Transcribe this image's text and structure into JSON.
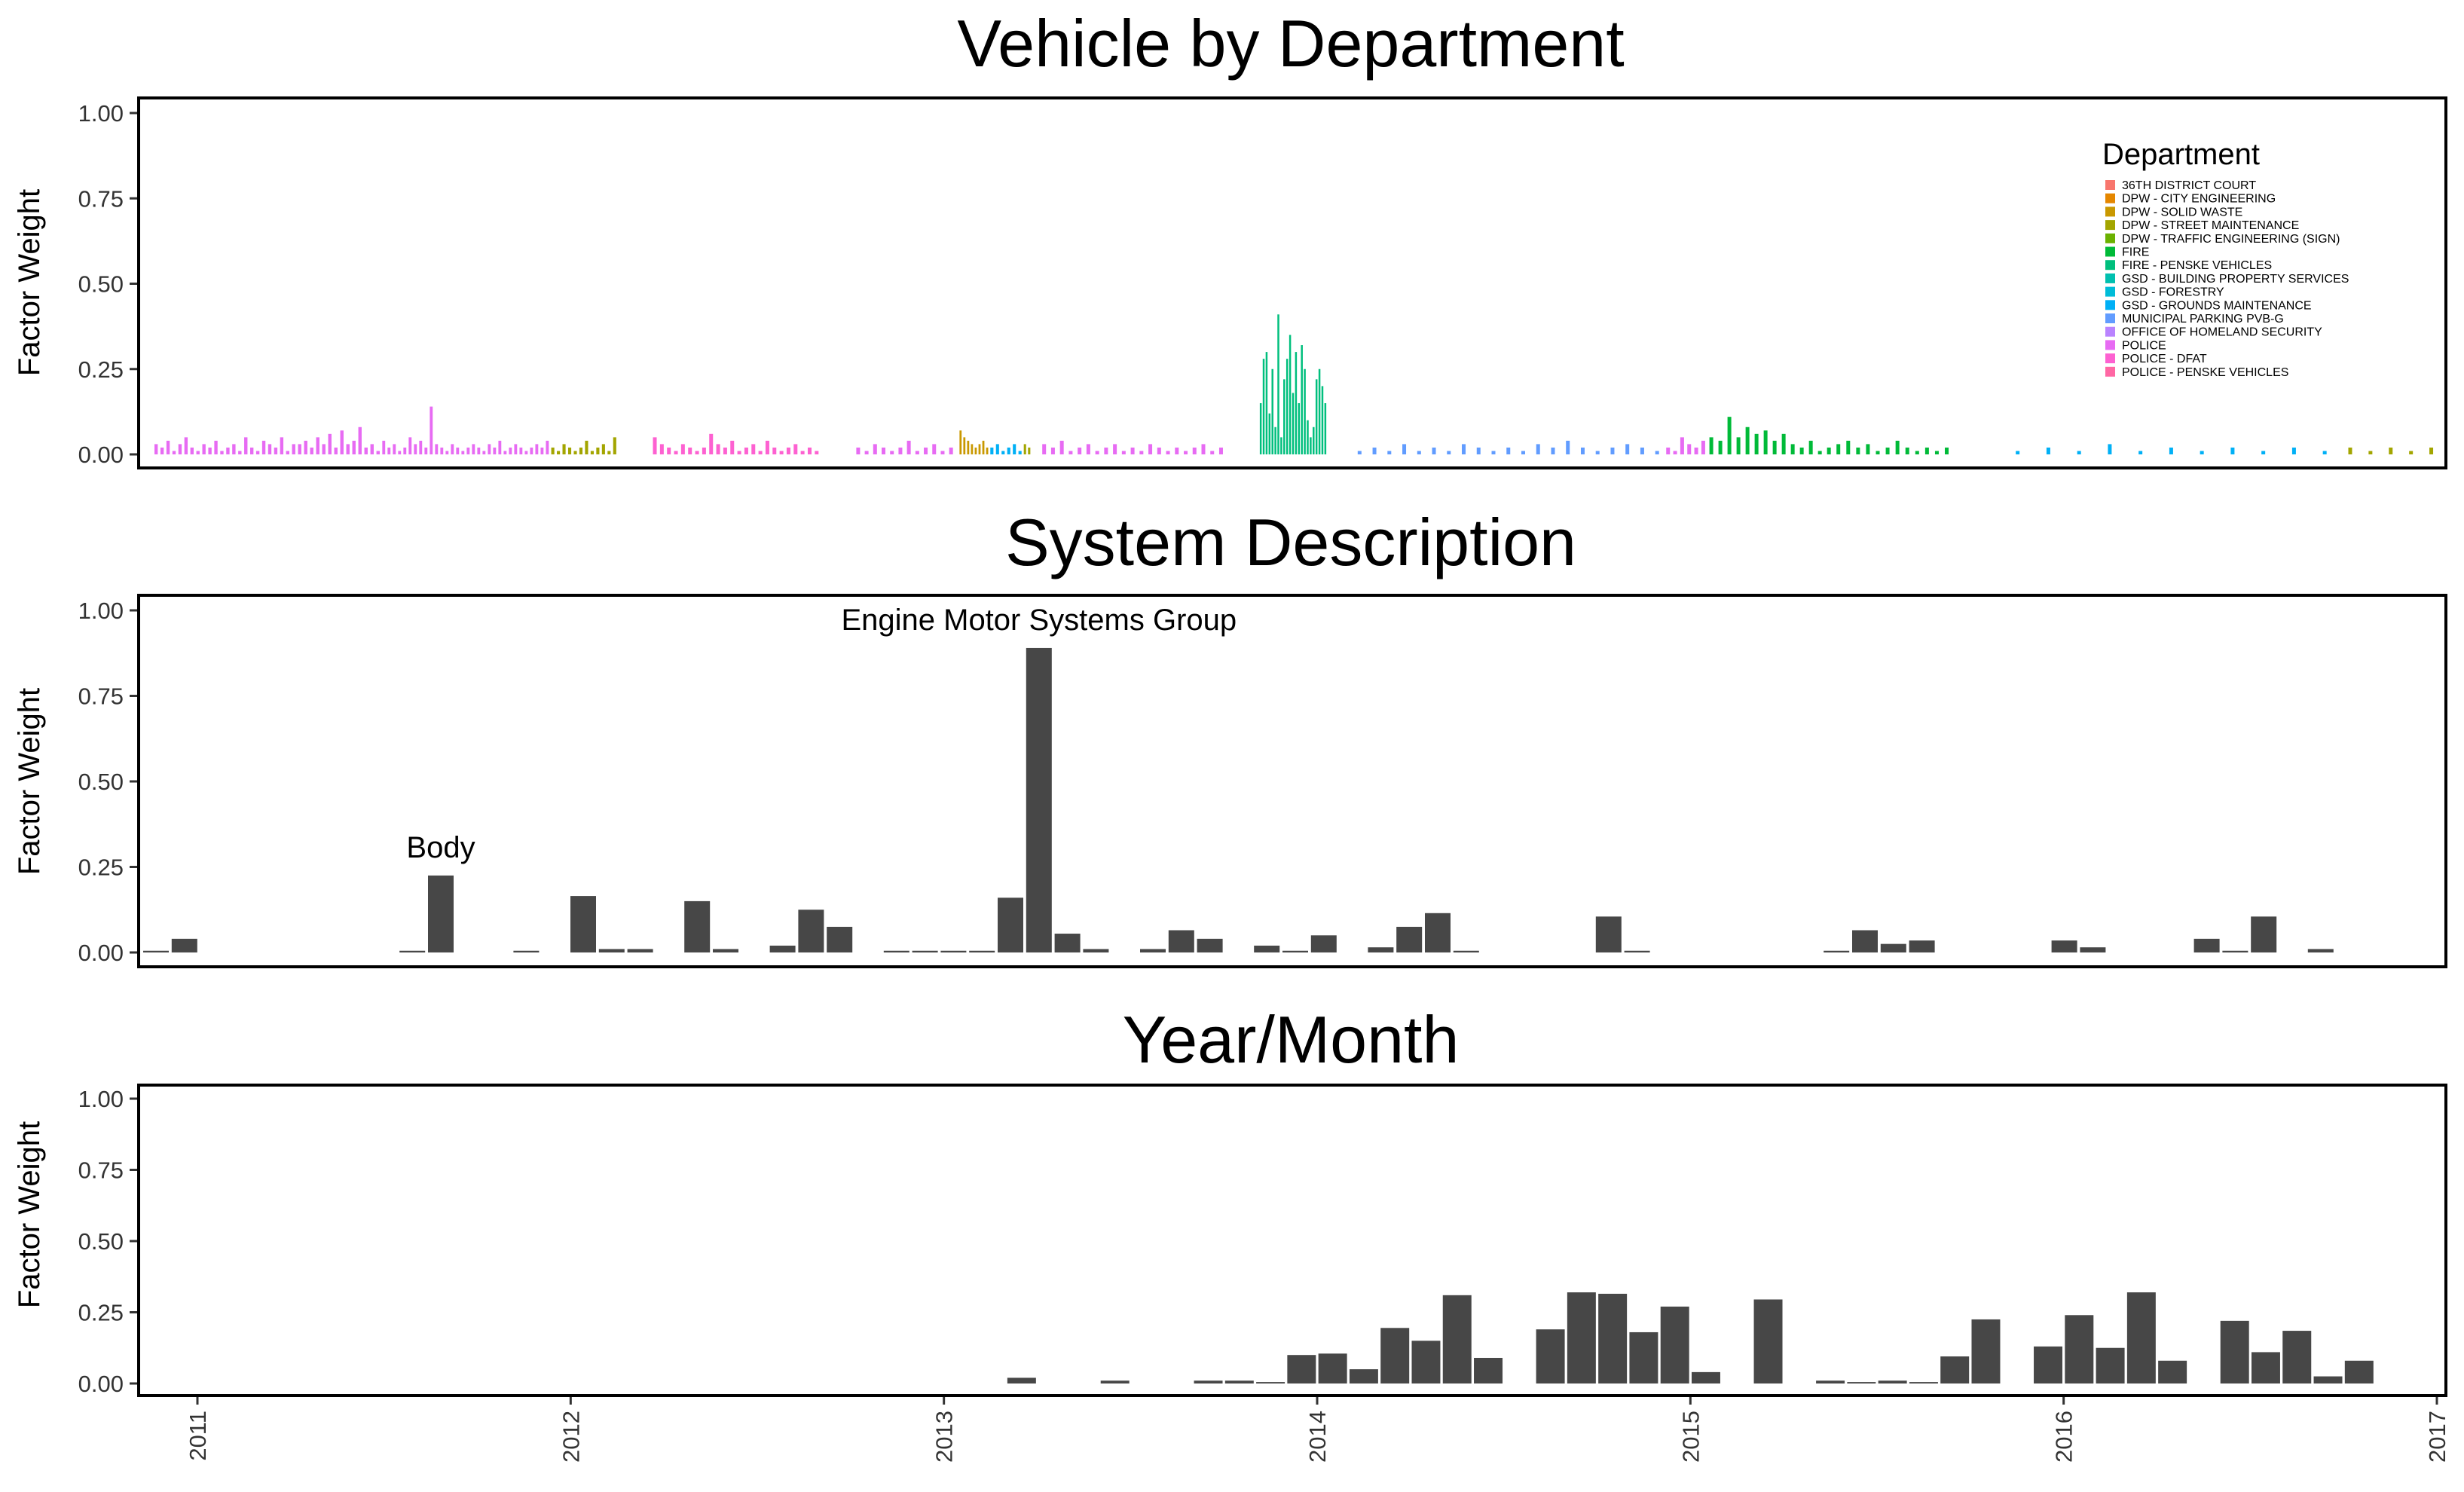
{
  "chart_data": [
    {
      "type": "bar",
      "title": "Vehicle by Department",
      "ylabel": "Factor Weight",
      "ylim": [
        0,
        1
      ],
      "yticks": [
        "0.00",
        "0.25",
        "0.50",
        "0.75",
        "1.00"
      ],
      "grid": false,
      "legend": {
        "title": "Department",
        "placement": "top-right",
        "entries": [
          {
            "name": "36TH DISTRICT COURT",
            "color": "#F8766D"
          },
          {
            "name": "DPW - CITY ENGINEERING",
            "color": "#E58700"
          },
          {
            "name": "DPW - SOLID WASTE",
            "color": "#C99800"
          },
          {
            "name": "DPW - STREET MAINTENANCE",
            "color": "#A3A500"
          },
          {
            "name": "DPW - TRAFFIC ENGINEERING (SIGN)",
            "color": "#6BB100"
          },
          {
            "name": "FIRE",
            "color": "#00BA38"
          },
          {
            "name": "FIRE - PENSKE VEHICLES",
            "color": "#00BF7D"
          },
          {
            "name": "GSD - BUILDING PROPERTY SERVICES",
            "color": "#00C0AF"
          },
          {
            "name": "GSD - FORESTRY",
            "color": "#00BCD8"
          },
          {
            "name": "GSD - GROUNDS MAINTENANCE",
            "color": "#00B0F6"
          },
          {
            "name": "MUNICIPAL PARKING PVB-G",
            "color": "#619CFF"
          },
          {
            "name": "OFFICE OF HOMELAND SECURITY",
            "color": "#B983FF"
          },
          {
            "name": "POLICE",
            "color": "#E76BF3"
          },
          {
            "name": "POLICE - DFAT",
            "color": "#FD61D1"
          },
          {
            "name": "POLICE - PENSKE VEHICLES",
            "color": "#FF67A4"
          }
        ]
      },
      "segments": [
        {
          "color": "#E76BF3",
          "start": 0.005,
          "end": 0.09,
          "values": [
            0.03,
            0.02,
            0.04,
            0.01,
            0.03,
            0.05,
            0.02,
            0.01,
            0.03,
            0.02,
            0.04,
            0.01,
            0.02,
            0.03,
            0.01,
            0.05,
            0.02,
            0.01,
            0.04,
            0.03,
            0.02,
            0.05,
            0.01,
            0.03
          ]
        },
        {
          "color": "#E76BF3",
          "start": 0.09,
          "end": 0.14,
          "values": [
            0.03,
            0.04,
            0.02,
            0.05,
            0.03,
            0.06,
            0.02,
            0.07,
            0.03,
            0.04,
            0.08,
            0.02,
            0.03,
            0.01
          ]
        },
        {
          "color": "#E76BF3",
          "start": 0.14,
          "end": 0.24,
          "values": [
            0.04,
            0.02,
            0.03,
            0.01,
            0.02,
            0.05,
            0.03,
            0.04,
            0.02,
            0.14,
            0.03,
            0.02,
            0.01,
            0.03,
            0.02,
            0.01,
            0.02,
            0.03,
            0.02,
            0.01,
            0.03,
            0.02,
            0.04,
            0.01,
            0.02,
            0.03,
            0.02,
            0.01,
            0.02,
            0.03,
            0.02,
            0.04
          ]
        },
        {
          "color": "#A3A500",
          "start": 0.24,
          "end": 0.28,
          "values": [
            0.02,
            0.01,
            0.03,
            0.02,
            0.01,
            0.02,
            0.04,
            0.01,
            0.02,
            0.03,
            0.01,
            0.05
          ]
        },
        {
          "color": "#FD61D1",
          "start": 0.3,
          "end": 0.4,
          "values": [
            0.05,
            0.03,
            0.02,
            0.01,
            0.03,
            0.02,
            0.01,
            0.02,
            0.06,
            0.03,
            0.02,
            0.04,
            0.01,
            0.02,
            0.03,
            0.01,
            0.04,
            0.02,
            0.01,
            0.02,
            0.03,
            0.01,
            0.02,
            0.01
          ]
        },
        {
          "color": "#E76BF3",
          "start": 0.42,
          "end": 0.48,
          "values": [
            0.02,
            0.01,
            0.03,
            0.02,
            0.01,
            0.02,
            0.04,
            0.01,
            0.02,
            0.03,
            0.01,
            0.02
          ]
        },
        {
          "color": "#C99800",
          "start": 0.482,
          "end": 0.5,
          "values": [
            0.07,
            0.05,
            0.04,
            0.03,
            0.02,
            0.03,
            0.04,
            0.02
          ]
        },
        {
          "color": "#00B0F6",
          "start": 0.5,
          "end": 0.52,
          "values": [
            0.02,
            0.03,
            0.01,
            0.02,
            0.03,
            0.01
          ]
        },
        {
          "color": "#A3A500",
          "start": 0.52,
          "end": 0.525,
          "values": [
            0.03,
            0.02
          ]
        },
        {
          "color": "#E76BF3",
          "start": 0.53,
          "end": 0.64,
          "values": [
            0.03,
            0.02,
            0.04,
            0.01,
            0.02,
            0.03,
            0.01,
            0.02,
            0.03,
            0.01,
            0.02,
            0.01,
            0.03,
            0.02,
            0.01,
            0.02,
            0.01,
            0.02,
            0.03,
            0.01,
            0.02
          ]
        },
        {
          "color": "#00BF7D",
          "start": 0.66,
          "end": 0.7,
          "values": [
            0.15,
            0.28,
            0.3,
            0.12,
            0.25,
            0.08,
            0.41,
            0.05,
            0.22,
            0.28,
            0.35,
            0.18,
            0.3,
            0.15,
            0.32,
            0.25,
            0.1,
            0.05,
            0.08,
            0.22,
            0.25,
            0.2,
            0.15
          ]
        },
        {
          "color": "#619CFF",
          "start": 0.715,
          "end": 0.9,
          "values": [
            0.01,
            0.02,
            0.01,
            0.03,
            0.01,
            0.02,
            0.01,
            0.03,
            0.02,
            0.01,
            0.02,
            0.01,
            0.03,
            0.02,
            0.04,
            0.02,
            0.01,
            0.02,
            0.03,
            0.02,
            0.01
          ]
        },
        {
          "color": "#E76BF3",
          "start": 0.9,
          "end": 0.925,
          "values": [
            0.02,
            0.01,
            0.05,
            0.03,
            0.02,
            0.04
          ]
        },
        {
          "color": "#00BA38",
          "start": 0.925,
          "end": 1.0,
          "values": [
            0.05,
            0.04,
            0.11,
            0.05,
            0.08,
            0.06,
            0.07,
            0.04,
            0.06,
            0.03,
            0.02,
            0.04,
            0.01,
            0.02
          ]
        },
        {
          "color": "#00BA38",
          "start": 1.0,
          "end": 1.07,
          "values": [
            0.03,
            0.04,
            0.02,
            0.03,
            0.01,
            0.02,
            0.04,
            0.02,
            0.01,
            0.02,
            0.01,
            0.02
          ]
        },
        {
          "color": "#00B0F6",
          "start": 1.1,
          "end": 1.3,
          "values": [
            0.01,
            0.02,
            0.01,
            0.03,
            0.01,
            0.02,
            0.01,
            0.02,
            0.01,
            0.02,
            0.01
          ]
        },
        {
          "color": "#A3A500",
          "start": 1.3,
          "end": 1.36,
          "values": [
            0.02,
            0.01,
            0.02,
            0.01,
            0.02
          ]
        }
      ]
    },
    {
      "type": "bar",
      "title": "System Description",
      "ylabel": "Factor Weight",
      "ylim": [
        0,
        1
      ],
      "yticks": [
        "0.00",
        "0.25",
        "0.50",
        "0.75",
        "1.00"
      ],
      "grid": false,
      "values": [
        0.005,
        0.04,
        0,
        0,
        0,
        0,
        0,
        0,
        0,
        0.005,
        0.225,
        0,
        0,
        0.005,
        0,
        0.165,
        0.01,
        0.01,
        0,
        0.15,
        0.01,
        0,
        0.02,
        0.125,
        0.075,
        0,
        0.005,
        0.005,
        0.005,
        0.005,
        0.16,
        0.89,
        0.055,
        0.01,
        0,
        0.01,
        0.065,
        0.04,
        0,
        0.02,
        0.005,
        0.05,
        0,
        0.015,
        0.075,
        0.115,
        0.005,
        0,
        0,
        0,
        0,
        0.105,
        0.005,
        0,
        0,
        0,
        0,
        0,
        0,
        0.005,
        0.065,
        0.025,
        0.035,
        0,
        0,
        0,
        0,
        0.035,
        0.015,
        0,
        0,
        0,
        0.04,
        0.005,
        0.105,
        0,
        0.01
      ],
      "annotations": [
        {
          "text": "Body",
          "bar_index": 10
        },
        {
          "text": "Engine Motor Systems Group",
          "bar_index": 31
        }
      ]
    },
    {
      "type": "bar",
      "title": "Year/Month",
      "ylabel": "Factor Weight",
      "ylim": [
        0,
        1
      ],
      "yticks": [
        "0.00",
        "0.25",
        "0.50",
        "0.75",
        "1.00"
      ],
      "grid": false,
      "x_axis": {
        "type": "date",
        "start": "2011",
        "end": "2017",
        "ticks": [
          "2011",
          "2012",
          "2013",
          "2014",
          "2015",
          "2016",
          "2017"
        ]
      },
      "bars": [
        {
          "x": "2013-03",
          "value": 0.02
        },
        {
          "x": "2013-06",
          "value": 0.01
        },
        {
          "x": "2013-09",
          "value": 0.01
        },
        {
          "x": "2013-10",
          "value": 0.01
        },
        {
          "x": "2013-11",
          "value": 0.005
        },
        {
          "x": "2013-12",
          "value": 0.1
        },
        {
          "x": "2014-01",
          "value": 0.105
        },
        {
          "x": "2014-02",
          "value": 0.05
        },
        {
          "x": "2014-03",
          "value": 0.195
        },
        {
          "x": "2014-04",
          "value": 0.15
        },
        {
          "x": "2014-05",
          "value": 0.31
        },
        {
          "x": "2014-06",
          "value": 0.09
        },
        {
          "x": "2014-08",
          "value": 0.19
        },
        {
          "x": "2014-09",
          "value": 0.32
        },
        {
          "x": "2014-10",
          "value": 0.315
        },
        {
          "x": "2014-11",
          "value": 0.18
        },
        {
          "x": "2014-12",
          "value": 0.27
        },
        {
          "x": "2015-01",
          "value": 0.04
        },
        {
          "x": "2015-03",
          "value": 0.295
        },
        {
          "x": "2015-05",
          "value": 0.01
        },
        {
          "x": "2015-06",
          "value": 0.005
        },
        {
          "x": "2015-07",
          "value": 0.01
        },
        {
          "x": "2015-08",
          "value": 0.005
        },
        {
          "x": "2015-09",
          "value": 0.095
        },
        {
          "x": "2015-10",
          "value": 0.225
        },
        {
          "x": "2015-12",
          "value": 0.13
        },
        {
          "x": "2016-01",
          "value": 0.24
        },
        {
          "x": "2016-02",
          "value": 0.125
        },
        {
          "x": "2016-03",
          "value": 0.32
        },
        {
          "x": "2016-04",
          "value": 0.08
        },
        {
          "x": "2016-06",
          "value": 0.22
        },
        {
          "x": "2016-07",
          "value": 0.11
        },
        {
          "x": "2016-08",
          "value": 0.185
        },
        {
          "x": "2016-09",
          "value": 0.025
        },
        {
          "x": "2016-10",
          "value": 0.08
        }
      ]
    }
  ]
}
